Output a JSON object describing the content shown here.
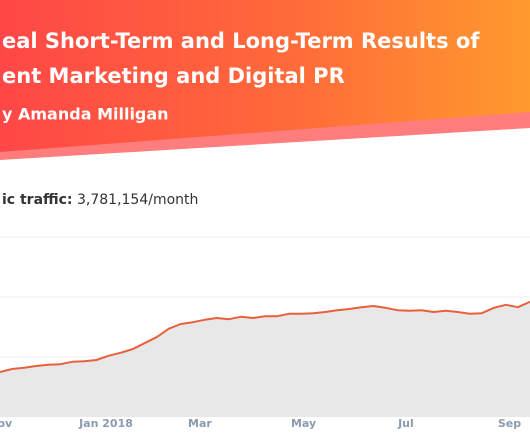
{
  "header": {
    "title_lines": [
      "eal Short-Term and Long-Term Results of",
      "ent Marketing and Digital PR"
    ],
    "author": "y Amanda Milligan"
  },
  "traffic": {
    "label": "ic traffic:",
    "value": "3,781,154/month"
  },
  "chart_data": {
    "type": "area",
    "color": "#e8603c",
    "fill": "#e8e8e8",
    "grid": true,
    "x": [
      0,
      1,
      2,
      3,
      4,
      5,
      6,
      7,
      8,
      9,
      10,
      11,
      12,
      13,
      14,
      15,
      16,
      17,
      18,
      19,
      20,
      21,
      22,
      23,
      24,
      25,
      26,
      27,
      28,
      29,
      30,
      31,
      32,
      33,
      34,
      35,
      36,
      37,
      38,
      39,
      40,
      41,
      42,
      43,
      44
    ],
    "values": [
      0.75,
      0.8,
      0.82,
      0.85,
      0.87,
      0.88,
      0.92,
      0.93,
      0.95,
      1.02,
      1.07,
      1.13,
      1.23,
      1.33,
      1.47,
      1.55,
      1.58,
      1.62,
      1.65,
      1.63,
      1.67,
      1.65,
      1.68,
      1.68,
      1.72,
      1.72,
      1.73,
      1.75,
      1.78,
      1.8,
      1.83,
      1.85,
      1.82,
      1.78,
      1.77,
      1.78,
      1.75,
      1.77,
      1.75,
      1.72,
      1.73,
      1.82,
      1.87,
      1.83,
      1.92
    ],
    "xlim": [
      0,
      44
    ],
    "xticks": [
      {
        "value": 0.4,
        "label": "ov"
      },
      {
        "value": 8.8,
        "label": "Jan 2018"
      },
      {
        "value": 16.6,
        "label": "Mar"
      },
      {
        "value": 25.2,
        "label": "May"
      },
      {
        "value": 33.7,
        "label": "Jul"
      },
      {
        "value": 42.3,
        "label": "Sep"
      }
    ],
    "ylim": [
      0,
      3
    ],
    "yticks": [
      1,
      2,
      3
    ]
  }
}
